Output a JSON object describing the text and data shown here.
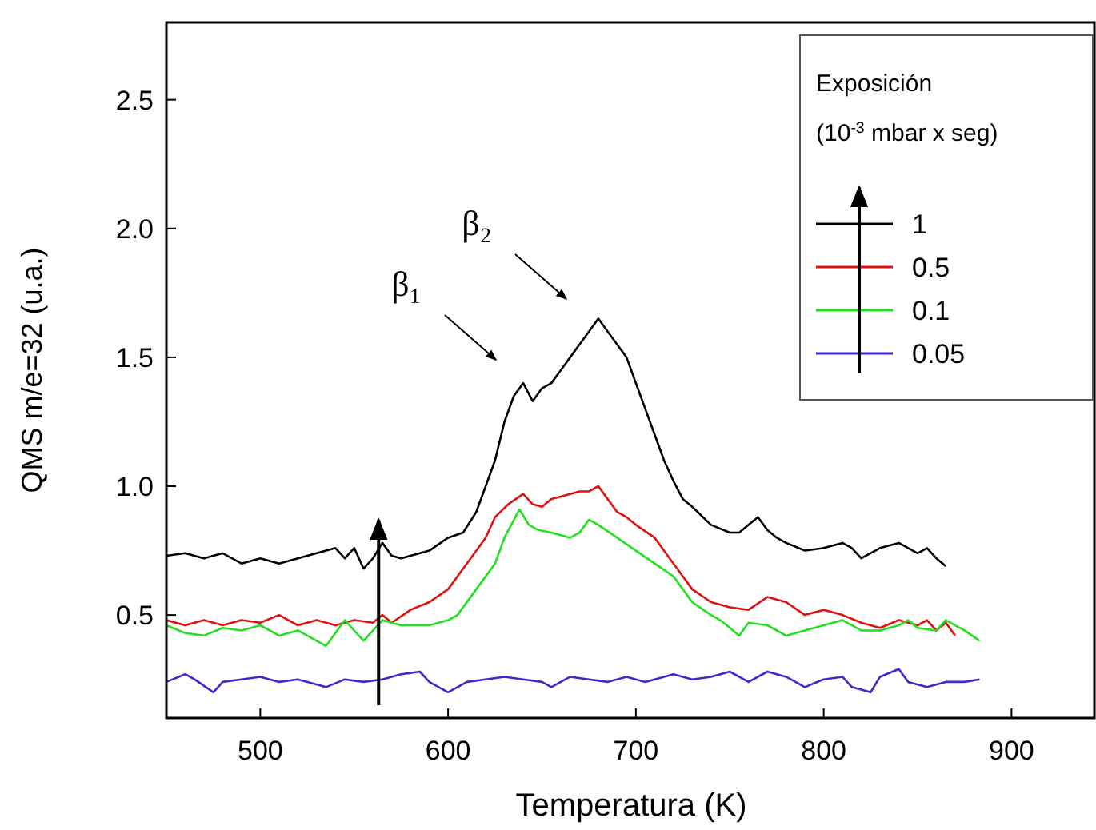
{
  "chart_data": {
    "type": "line",
    "xlabel": "Temperatura (K)",
    "ylabel": "QMS m/e=32 (u.a.)",
    "legend_title": "Exposición\n(10$^{-3}$ mbar x seg)",
    "legend": "top right",
    "grid": false,
    "marker": "none",
    "line_style": "solid",
    "xlim": [
      450,
      945
    ],
    "xticks": [
      500,
      600,
      700,
      800,
      900
    ],
    "ylim": [
      0.1,
      2.8
    ],
    "yticks": [
      0.5,
      {
        "value": 1,
        "label": "1.0"
      },
      1.5,
      {
        "value": 2,
        "label": "2.0"
      },
      2.5
    ],
    "annotations": [
      "β₁",
      "β₂"
    ],
    "series": [
      {
        "name": "1",
        "color": "#000000",
        "x": [
          450,
          460,
          470,
          480,
          490,
          500,
          510,
          520,
          530,
          540,
          545,
          550,
          555,
          560,
          565,
          570,
          575,
          585,
          590,
          600,
          608,
          615,
          620,
          625,
          630,
          635,
          640,
          645,
          650,
          655,
          660,
          665,
          670,
          675,
          680,
          685,
          690,
          695,
          700,
          705,
          710,
          715,
          720,
          725,
          730,
          740,
          750,
          755,
          760,
          765,
          770,
          775,
          780,
          790,
          800,
          810,
          815,
          820,
          830,
          840,
          850,
          855,
          860,
          865
        ],
        "values": [
          0.73,
          0.74,
          0.72,
          0.74,
          0.7,
          0.72,
          0.7,
          0.72,
          0.74,
          0.76,
          0.72,
          0.76,
          0.68,
          0.72,
          0.78,
          0.73,
          0.72,
          0.74,
          0.75,
          0.8,
          0.82,
          0.9,
          1.0,
          1.1,
          1.25,
          1.35,
          1.4,
          1.33,
          1.38,
          1.4,
          1.45,
          1.5,
          1.55,
          1.6,
          1.65,
          1.6,
          1.55,
          1.5,
          1.4,
          1.3,
          1.2,
          1.1,
          1.02,
          0.95,
          0.92,
          0.85,
          0.82,
          0.82,
          0.85,
          0.88,
          0.83,
          0.8,
          0.78,
          0.75,
          0.76,
          0.78,
          0.76,
          0.72,
          0.76,
          0.78,
          0.74,
          0.76,
          0.72,
          0.69
        ]
      },
      {
        "name": "0.5",
        "color": "#e01010",
        "x": [
          450,
          460,
          470,
          480,
          490,
          500,
          510,
          520,
          530,
          540,
          550,
          560,
          565,
          570,
          580,
          590,
          600,
          605,
          610,
          620,
          625,
          632,
          640,
          645,
          650,
          655,
          660,
          670,
          675,
          680,
          685,
          690,
          695,
          700,
          710,
          720,
          725,
          730,
          740,
          750,
          760,
          770,
          780,
          790,
          800,
          810,
          820,
          830,
          840,
          850,
          855,
          860,
          865,
          870
        ],
        "values": [
          0.48,
          0.46,
          0.48,
          0.46,
          0.48,
          0.47,
          0.5,
          0.46,
          0.48,
          0.46,
          0.48,
          0.47,
          0.5,
          0.47,
          0.52,
          0.55,
          0.6,
          0.65,
          0.7,
          0.8,
          0.88,
          0.93,
          0.97,
          0.93,
          0.92,
          0.95,
          0.96,
          0.98,
          0.98,
          1.0,
          0.95,
          0.9,
          0.88,
          0.85,
          0.8,
          0.7,
          0.65,
          0.6,
          0.55,
          0.53,
          0.52,
          0.57,
          0.55,
          0.5,
          0.52,
          0.5,
          0.47,
          0.45,
          0.48,
          0.46,
          0.48,
          0.44,
          0.47,
          0.42
        ]
      },
      {
        "name": "0.1",
        "color": "#20e020",
        "x": [
          450,
          460,
          470,
          480,
          490,
          500,
          510,
          520,
          535,
          545,
          555,
          565,
          575,
          590,
          600,
          605,
          615,
          625,
          630,
          638,
          643,
          648,
          655,
          665,
          670,
          675,
          680,
          690,
          700,
          710,
          720,
          730,
          740,
          745,
          755,
          760,
          770,
          780,
          790,
          800,
          810,
          820,
          830,
          840,
          845,
          850,
          860,
          865,
          875,
          883
        ],
        "values": [
          0.46,
          0.43,
          0.42,
          0.45,
          0.44,
          0.46,
          0.42,
          0.44,
          0.38,
          0.48,
          0.4,
          0.48,
          0.46,
          0.46,
          0.48,
          0.5,
          0.6,
          0.7,
          0.8,
          0.91,
          0.85,
          0.83,
          0.82,
          0.8,
          0.82,
          0.87,
          0.85,
          0.8,
          0.75,
          0.7,
          0.65,
          0.55,
          0.5,
          0.48,
          0.42,
          0.47,
          0.46,
          0.42,
          0.44,
          0.46,
          0.48,
          0.44,
          0.44,
          0.46,
          0.48,
          0.45,
          0.44,
          0.48,
          0.44,
          0.4
        ]
      },
      {
        "name": "0.05",
        "color": "#3a2ad0",
        "x": [
          450,
          460,
          465,
          475,
          480,
          490,
          500,
          510,
          520,
          535,
          545,
          555,
          565,
          575,
          585,
          590,
          600,
          610,
          620,
          630,
          640,
          650,
          655,
          665,
          675,
          685,
          695,
          705,
          720,
          730,
          740,
          750,
          760,
          770,
          780,
          790,
          800,
          810,
          815,
          825,
          830,
          840,
          845,
          855,
          865,
          875,
          883
        ],
        "values": [
          0.24,
          0.27,
          0.25,
          0.2,
          0.24,
          0.25,
          0.26,
          0.24,
          0.25,
          0.22,
          0.25,
          0.24,
          0.25,
          0.27,
          0.28,
          0.24,
          0.2,
          0.24,
          0.25,
          0.26,
          0.25,
          0.24,
          0.22,
          0.26,
          0.25,
          0.24,
          0.26,
          0.24,
          0.27,
          0.25,
          0.26,
          0.28,
          0.24,
          0.28,
          0.26,
          0.22,
          0.25,
          0.26,
          0.22,
          0.2,
          0.26,
          0.29,
          0.24,
          0.22,
          0.24,
          0.24,
          0.25
        ]
      }
    ]
  }
}
